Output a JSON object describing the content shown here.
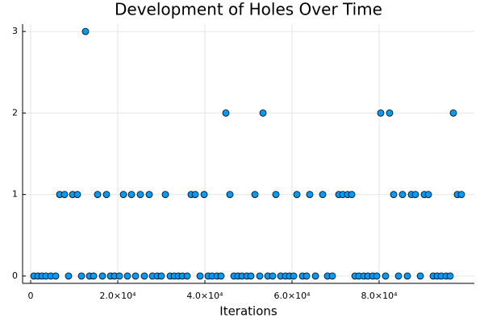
{
  "chart_data": {
    "type": "scatter",
    "title": "Development of Holes Over Time",
    "x_label": "Iterations",
    "series": [
      {
        "color": "#009af9",
        "x": [
          740,
          1670,
          2590,
          3520,
          4630,
          5740,
          6670,
          7780,
          8700,
          9630,
          10740,
          11670,
          12590,
          13520,
          14450,
          15370,
          16480,
          17410,
          18330,
          19260,
          20370,
          21300,
          22220,
          23150,
          24080,
          25190,
          26110,
          27220,
          27970,
          29080,
          30000,
          30930,
          32040,
          32970,
          33890,
          34820,
          35930,
          36850,
          37780,
          38890,
          39820,
          40740,
          41670,
          42780,
          43710,
          44820,
          45740,
          46670,
          47600,
          48520,
          49630,
          50560,
          51490,
          52600,
          53340,
          54450,
          55560,
          56300,
          57410,
          58520,
          59450,
          60380,
          61120,
          62410,
          63340,
          64080,
          65380,
          67040,
          68150,
          69260,
          70740,
          71670,
          72780,
          73710,
          74450,
          75370,
          76480,
          77410,
          78520,
          79450,
          80370,
          81480,
          82410,
          83340,
          84450,
          85370,
          86480,
          87410,
          88330,
          89450,
          90370,
          91300,
          92410,
          93340,
          94260,
          95370,
          96300,
          97040,
          97960,
          98890
        ],
        "values": [
          0,
          0,
          0,
          0,
          0,
          0,
          1,
          1,
          0,
          1,
          1,
          0,
          3,
          0,
          0,
          1,
          0,
          1,
          0,
          0,
          0,
          1,
          0,
          1,
          0,
          1,
          0,
          1,
          0,
          0,
          0,
          1,
          0,
          0,
          0,
          0,
          0,
          1,
          1,
          0,
          1,
          0,
          0,
          0,
          0,
          2,
          1,
          0,
          0,
          0,
          0,
          0,
          1,
          0,
          2,
          0,
          0,
          1,
          0,
          0,
          0,
          0,
          1,
          0,
          0,
          1,
          0,
          1,
          0,
          0,
          1,
          1,
          1,
          1,
          0,
          0,
          0,
          0,
          0,
          0,
          2,
          0,
          2,
          1,
          0,
          1,
          0,
          1,
          1,
          0,
          1,
          1,
          0,
          0,
          0,
          0,
          0,
          2,
          1,
          1
        ]
      }
    ],
    "xlim": [
      -1850,
      101850
    ],
    "ylim": [
      -0.09,
      3.09
    ],
    "xticks": [
      0,
      {
        "value": 20000,
        "label": "2.0×10⁴"
      },
      {
        "value": 40000,
        "label": "4.0×10⁴"
      },
      {
        "value": 60000,
        "label": "6.0×10⁴"
      },
      {
        "value": 80000,
        "label": "8.0×10⁴"
      }
    ],
    "yticks": [
      0,
      1,
      2,
      3
    ],
    "grid": true
  }
}
